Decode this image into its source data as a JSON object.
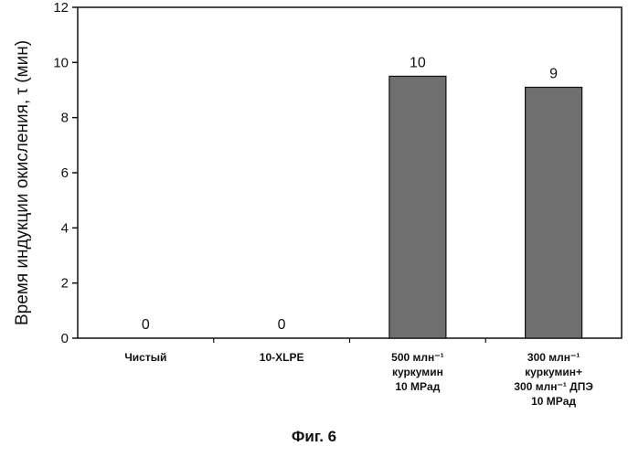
{
  "chart_data": {
    "type": "bar",
    "categories": [
      [
        "Чистый"
      ],
      [
        "10-XLPE"
      ],
      [
        "500 млн⁻¹",
        "куркумин",
        "10 MPад"
      ],
      [
        "300 млн⁻¹",
        "куркумин+",
        "300 млн⁻¹ ДПЭ",
        "10 MPад"
      ]
    ],
    "values": [
      0,
      0,
      9.5,
      9.1
    ],
    "data_labels": [
      "0",
      "0",
      "10",
      "9"
    ],
    "ylabel": "Время индукции окисления, τ (мин)",
    "xlabel": "",
    "title": "",
    "ylim": [
      0,
      12
    ],
    "yticks": [
      0,
      2,
      4,
      6,
      8,
      10,
      12
    ],
    "grid": false,
    "legend": "none",
    "bar_color": "#6f6f6f"
  },
  "caption": "Фиг. 6"
}
